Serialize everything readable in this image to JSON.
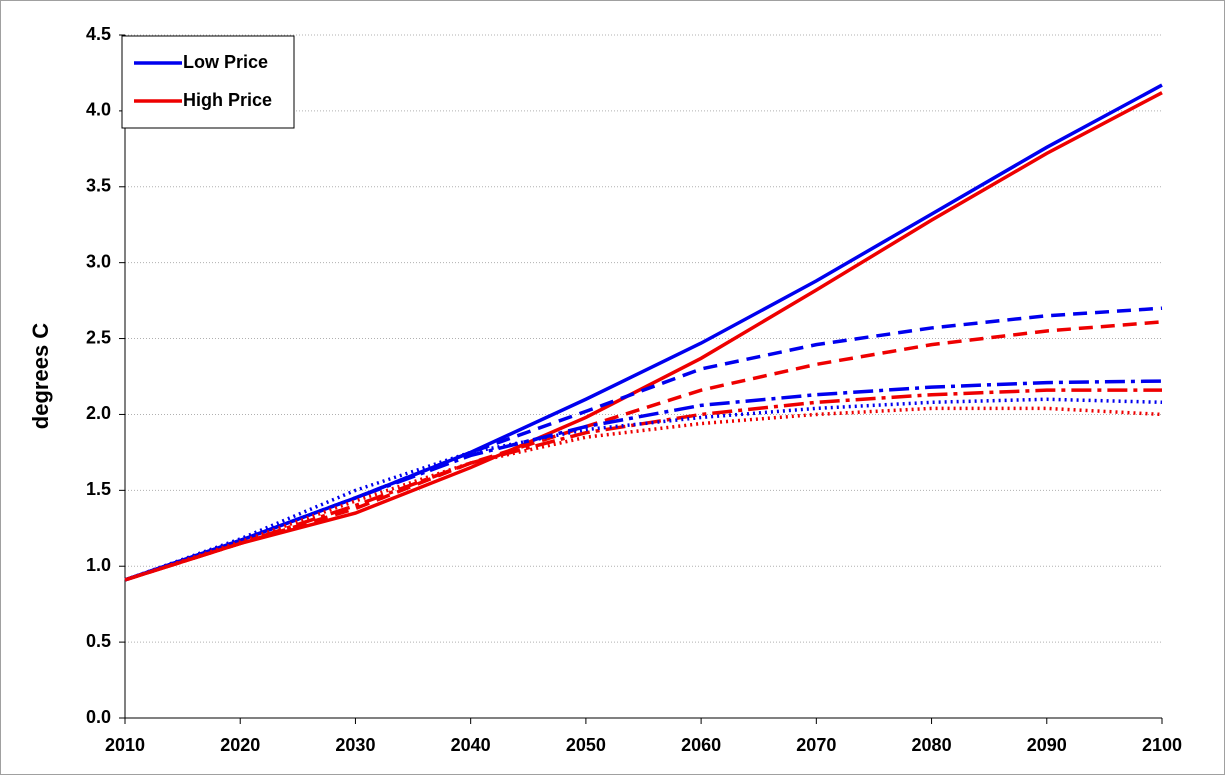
{
  "chart_data": {
    "type": "line",
    "y_label": "degrees C",
    "x": [
      2010,
      2020,
      2030,
      2040,
      2050,
      2060,
      2070,
      2080,
      2090,
      2100
    ],
    "xlim": [
      2010,
      2100
    ],
    "xticks": [
      2010,
      2020,
      2030,
      2040,
      2050,
      2060,
      2070,
      2080,
      2090,
      2100
    ],
    "ylim": [
      0,
      4.5
    ],
    "yticks": [
      {
        "value": 0,
        "label": "0.0"
      },
      0.5,
      {
        "value": 1,
        "label": "1.0"
      },
      1.5,
      {
        "value": 2,
        "label": "2.0"
      },
      2.5,
      {
        "value": 3,
        "label": "3.0"
      },
      3.5,
      {
        "value": 4,
        "label": "4.0"
      },
      4.5
    ],
    "grid": true,
    "legend": "upper left",
    "series": [
      {
        "name": "Low Price",
        "color": "#0000ee",
        "dash": "solid",
        "values": [
          0.91,
          1.17,
          1.45,
          1.75,
          2.1,
          2.47,
          2.88,
          3.32,
          3.76,
          4.17
        ]
      },
      {
        "name": "High Price",
        "color": "#ee0000",
        "dash": "solid",
        "values": [
          0.91,
          1.15,
          1.35,
          1.65,
          1.98,
          2.37,
          2.82,
          3.28,
          3.72,
          4.12
        ]
      },
      {
        "color": "#0000ee",
        "dash": "dashed",
        "values": [
          0.91,
          1.17,
          1.45,
          1.75,
          2.02,
          2.3,
          2.46,
          2.57,
          2.65,
          2.7
        ]
      },
      {
        "color": "#ee0000",
        "dash": "dashed",
        "values": [
          0.91,
          1.15,
          1.38,
          1.68,
          1.92,
          2.16,
          2.33,
          2.46,
          2.55,
          2.61
        ]
      },
      {
        "color": "#0000ee",
        "dash": "dashdot",
        "values": [
          0.91,
          1.17,
          1.45,
          1.73,
          1.92,
          2.06,
          2.13,
          2.18,
          2.21,
          2.22
        ]
      },
      {
        "color": "#ee0000",
        "dash": "dashdot",
        "values": [
          0.91,
          1.15,
          1.4,
          1.68,
          1.88,
          2.0,
          2.08,
          2.13,
          2.16,
          2.16
        ]
      },
      {
        "color": "#0000ee",
        "dash": "dotted",
        "values": [
          0.91,
          1.18,
          1.5,
          1.75,
          1.9,
          1.98,
          2.04,
          2.08,
          2.1,
          2.08
        ]
      },
      {
        "color": "#ee0000",
        "dash": "dotted",
        "values": [
          0.91,
          1.16,
          1.43,
          1.68,
          1.85,
          1.94,
          2.0,
          2.04,
          2.04,
          2.0
        ]
      }
    ]
  }
}
